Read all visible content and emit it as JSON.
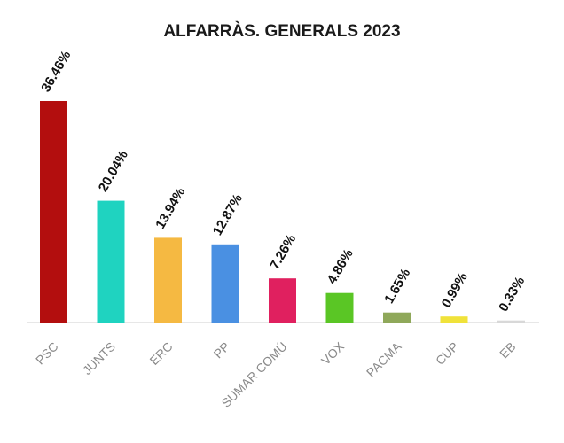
{
  "chart_data": {
    "type": "bar",
    "title": "ALFARRÀS. GENERALS 2023",
    "xlabel": "",
    "ylabel": "",
    "ylim": [
      0,
      40
    ],
    "grid": false,
    "legend": "none",
    "categories": [
      "PSC",
      "JUNTS",
      "ERC",
      "PP",
      "SUMAR COMÚ",
      "VOX",
      "PACMA",
      "CUP",
      "EB"
    ],
    "values": [
      36.46,
      20.04,
      13.94,
      12.87,
      7.26,
      4.86,
      1.65,
      0.99,
      0.33
    ],
    "value_labels": [
      "36.46%",
      "20.04%",
      "13.94%",
      "12.87%",
      "7.26%",
      "4.86%",
      "1.65%",
      "0.99%",
      "0.33%"
    ],
    "colors": [
      "#b30e0e",
      "#1fd3c0",
      "#f5b942",
      "#4a90e2",
      "#e0205f",
      "#5ac625",
      "#8fa85a",
      "#f0e23a",
      "#d8d8d8"
    ]
  }
}
